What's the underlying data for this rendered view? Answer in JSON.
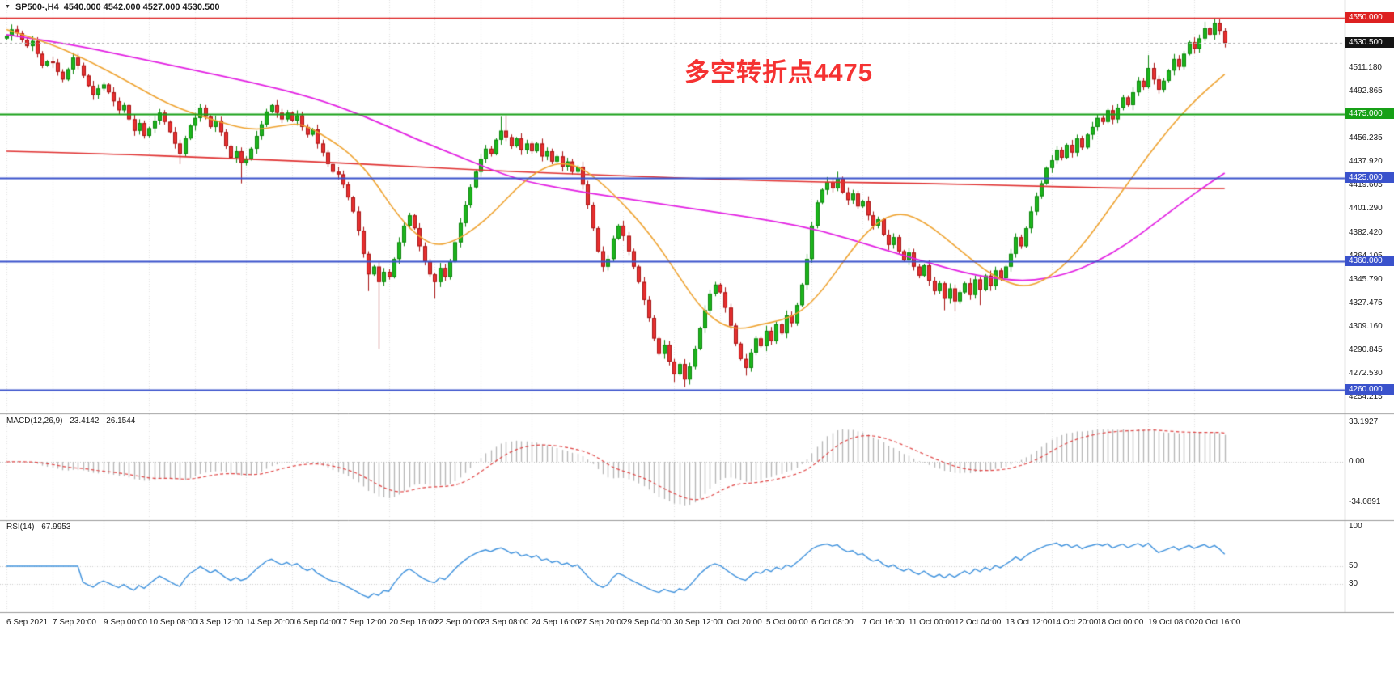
{
  "window": {
    "title_symbol_tf": "SP500-,H4",
    "title_ohlc": "4540.000 4542.000 4527.000 4530.500"
  },
  "chart_data": {
    "type": "candlestick",
    "symbol": "SP500-",
    "timeframe": "H4",
    "current_bar": {
      "open": 4540.0,
      "high": 4542.0,
      "low": 4527.0,
      "close": 4530.5
    },
    "first_open": 4534,
    "closes": [
      4536,
      4541,
      4538,
      4533,
      4528,
      4532,
      4522,
      4513,
      4516,
      4515,
      4508,
      4502,
      4510,
      4519,
      4513,
      4505,
      4497,
      4490,
      4495,
      4498,
      4492,
      4485,
      4478,
      4482,
      4471,
      4462,
      4468,
      4458,
      4464,
      4470,
      4476,
      4469,
      4461,
      4452,
      4444,
      4456,
      4466,
      4472,
      4480,
      4473,
      4465,
      4470,
      4461,
      4450,
      4441,
      4446,
      4437,
      4440,
      4448,
      4458,
      4467,
      4477,
      4482,
      4476,
      4471,
      4476,
      4470,
      4474,
      4465,
      4459,
      4463,
      4452,
      4445,
      4436,
      4430,
      4428,
      4420,
      4410,
      4399,
      4384,
      4366,
      4350,
      4356,
      4344,
      4352,
      4348,
      4362,
      4375,
      4388,
      4396,
      4386,
      4372,
      4360,
      4350,
      4344,
      4355,
      4348,
      4360,
      4375,
      4390,
      4404,
      4418,
      4430,
      4440,
      4448,
      4444,
      4455,
      4462,
      4457,
      4450,
      4456,
      4447,
      4452,
      4446,
      4452,
      4442,
      4446,
      4438,
      4442,
      4434,
      4438,
      4430,
      4434,
      4420,
      4404,
      4386,
      4368,
      4356,
      4362,
      4378,
      4388,
      4380,
      4368,
      4356,
      4344,
      4330,
      4316,
      4300,
      4288,
      4295,
      4282,
      4272,
      4280,
      4268,
      4278,
      4292,
      4308,
      4322,
      4335,
      4342,
      4336,
      4324,
      4310,
      4296,
      4284,
      4277,
      4289,
      4300,
      4294,
      4306,
      4298,
      4311,
      4304,
      4318,
      4312,
      4326,
      4342,
      4362,
      4388,
      4406,
      4416,
      4422,
      4417,
      4425,
      4414,
      4408,
      4413,
      4403,
      4407,
      4396,
      4388,
      4393,
      4381,
      4373,
      4379,
      4368,
      4361,
      4367,
      4356,
      4349,
      4357,
      4345,
      4337,
      4343,
      4331,
      4339,
      4329,
      4336,
      4343,
      4334,
      4346,
      4338,
      4349,
      4341,
      4353,
      4347,
      4356,
      4366,
      4379,
      4372,
      4386,
      4399,
      4411,
      4421,
      4433,
      4439,
      4447,
      4441,
      4451,
      4445,
      4456,
      4449,
      4459,
      4465,
      4472,
      4469,
      4478,
      4471,
      4480,
      4488,
      4482,
      4492,
      4501,
      4496,
      4511,
      4502,
      4494,
      4501,
      4509,
      4518,
      4512,
      4522,
      4531,
      4526,
      4534,
      4542,
      4537,
      4546,
      4540,
      4530.5
    ],
    "wick_overrides": {
      "34": {
        "low": 4436
      },
      "46": {
        "low": 4421
      },
      "71": {
        "low": 4337
      },
      "73": {
        "low": 4292
      },
      "84": {
        "low": 4331
      },
      "97": {
        "high": 4473
      },
      "98": {
        "high": 4474
      },
      "131": {
        "low": 4266
      },
      "133": {
        "low": 4262
      },
      "134": {
        "low": 4264
      },
      "145": {
        "low": 4271
      },
      "163": {
        "high": 4430
      },
      "184": {
        "low": 4322
      },
      "186": {
        "low": 4321
      },
      "191": {
        "low": 4326
      },
      "224": {
        "high": 4521
      },
      "235": {
        "high": 4547
      },
      "237": {
        "high": 4550
      },
      "238": {
        "high": 4549
      },
      "239": {
        "high": 4542,
        "low": 4527
      }
    },
    "x_axis": {
      "labels": [
        "6 Sep 2021",
        "7 Sep 20:00",
        "9 Sep 00:00",
        "10 Sep 08:00",
        "13 Sep 12:00",
        "14 Sep 20:00",
        "16 Sep 04:00",
        "17 Sep 12:00",
        "20 Sep 16:00",
        "22 Sep 00:00",
        "23 Sep 08:00",
        "24 Sep 16:00",
        "27 Sep 20:00",
        "29 Sep 04:00",
        "30 Sep 12:00",
        "1 Oct 20:00",
        "5 Oct 00:00",
        "6 Oct 08:00",
        "7 Oct 16:00",
        "11 Oct 00:00",
        "12 Oct 04:00",
        "13 Oct 12:00",
        "14 Oct 20:00",
        "18 Oct 00:00",
        "19 Oct 08:00",
        "20 Oct 16:00"
      ],
      "indices": [
        0,
        9,
        19,
        28,
        37,
        47,
        56,
        65,
        75,
        84,
        93,
        103,
        112,
        121,
        131,
        140,
        149,
        158,
        168,
        177,
        186,
        196,
        205,
        214,
        224,
        233
      ]
    },
    "y_axis": {
      "ticks": [
        "4511.180",
        "4492.865",
        "4456.235",
        "4437.920",
        "4419.605",
        "4401.290",
        "4382.420",
        "4364.105",
        "4345.790",
        "4327.475",
        "4309.160",
        "4290.845",
        "4272.530",
        "4254.215"
      ],
      "badges": [
        {
          "text": "4550.000",
          "bg": "#dd2020",
          "role": "resistance-line"
        },
        {
          "text": "4530.500",
          "bg": "#141414",
          "role": "current-price"
        },
        {
          "text": "4475.000",
          "bg": "#16a016",
          "role": "pivot-line"
        },
        {
          "text": "4425.000",
          "bg": "#3a52cc",
          "role": "support-line-1"
        },
        {
          "text": "4360.000",
          "bg": "#3a52cc",
          "role": "support-line-2"
        },
        {
          "text": "4260.000",
          "bg": "#3a52cc",
          "role": "support-line-3"
        }
      ]
    },
    "horizontal_lines": [
      {
        "price": 4550,
        "color": "#dd2020",
        "width": 1.4
      },
      {
        "price": 4475,
        "color": "#16a016",
        "width": 1.8
      },
      {
        "price": 4425,
        "color": "#3a52cc",
        "width": 1.8
      },
      {
        "price": 4360,
        "color": "#3a52cc",
        "width": 1.8
      },
      {
        "price": 4260,
        "color": "#3a52cc",
        "width": 1.8
      }
    ],
    "current_price_line": {
      "price": 4530.5,
      "color": "#b0b0b0"
    },
    "moving_averages": [
      {
        "name": "slow-ma-red",
        "color": "#e03131",
        "width": 1.6,
        "anchors": [
          [
            0,
            4446
          ],
          [
            20,
            4444
          ],
          [
            40,
            4441
          ],
          [
            60,
            4438
          ],
          [
            80,
            4434
          ],
          [
            100,
            4430
          ],
          [
            120,
            4427
          ],
          [
            140,
            4424
          ],
          [
            160,
            4422
          ],
          [
            180,
            4421
          ],
          [
            200,
            4419
          ],
          [
            220,
            4417
          ],
          [
            239,
            4417
          ]
        ]
      },
      {
        "name": "medium-ma-magenta",
        "color": "#e320e3",
        "width": 1.8,
        "anchors": [
          [
            0,
            4537
          ],
          [
            12,
            4530
          ],
          [
            24,
            4520
          ],
          [
            36,
            4510
          ],
          [
            48,
            4500
          ],
          [
            60,
            4488
          ],
          [
            70,
            4474
          ],
          [
            80,
            4456
          ],
          [
            90,
            4440
          ],
          [
            100,
            4424
          ],
          [
            110,
            4416
          ],
          [
            120,
            4410
          ],
          [
            130,
            4404
          ],
          [
            140,
            4398
          ],
          [
            150,
            4392
          ],
          [
            160,
            4384
          ],
          [
            170,
            4372
          ],
          [
            180,
            4360
          ],
          [
            190,
            4349
          ],
          [
            200,
            4344
          ],
          [
            208,
            4350
          ],
          [
            214,
            4360
          ],
          [
            220,
            4374
          ],
          [
            226,
            4392
          ],
          [
            232,
            4410
          ],
          [
            236,
            4421
          ],
          [
            239,
            4429
          ]
        ]
      },
      {
        "name": "fast-ma-orange",
        "color": "#efa330",
        "width": 1.6,
        "anchors": [
          [
            0,
            4541
          ],
          [
            8,
            4531
          ],
          [
            16,
            4517
          ],
          [
            24,
            4500
          ],
          [
            32,
            4482
          ],
          [
            40,
            4471
          ],
          [
            48,
            4462
          ],
          [
            54,
            4466
          ],
          [
            58,
            4468
          ],
          [
            64,
            4454
          ],
          [
            68,
            4442
          ],
          [
            72,
            4424
          ],
          [
            76,
            4400
          ],
          [
            80,
            4382
          ],
          [
            84,
            4372
          ],
          [
            88,
            4376
          ],
          [
            92,
            4386
          ],
          [
            96,
            4400
          ],
          [
            100,
            4417
          ],
          [
            104,
            4430
          ],
          [
            108,
            4437
          ],
          [
            112,
            4435
          ],
          [
            116,
            4424
          ],
          [
            120,
            4409
          ],
          [
            124,
            4392
          ],
          [
            128,
            4372
          ],
          [
            132,
            4348
          ],
          [
            136,
            4325
          ],
          [
            140,
            4311
          ],
          [
            144,
            4307
          ],
          [
            148,
            4311
          ],
          [
            152,
            4314
          ],
          [
            156,
            4321
          ],
          [
            160,
            4337
          ],
          [
            164,
            4359
          ],
          [
            168,
            4380
          ],
          [
            172,
            4394
          ],
          [
            176,
            4398
          ],
          [
            180,
            4391
          ],
          [
            184,
            4379
          ],
          [
            188,
            4366
          ],
          [
            192,
            4353
          ],
          [
            196,
            4344
          ],
          [
            200,
            4340
          ],
          [
            204,
            4346
          ],
          [
            208,
            4359
          ],
          [
            212,
            4377
          ],
          [
            216,
            4399
          ],
          [
            220,
            4421
          ],
          [
            224,
            4443
          ],
          [
            228,
            4463
          ],
          [
            232,
            4481
          ],
          [
            236,
            4496
          ],
          [
            239,
            4506
          ]
        ]
      }
    ],
    "candle_colors": {
      "up_fill": "#1db51d",
      "up_border": "#0c860c",
      "down_fill": "#e63030",
      "down_border": "#a81515"
    },
    "indicators": {
      "macd": {
        "label": "MACD(12,26,9)",
        "fast": 12,
        "slow": 26,
        "signal": 9,
        "value_main": "23.4142",
        "value_signal": "26.1544",
        "scale_top": "33.1927",
        "scale_zero": "0.00",
        "scale_bottom": "-34.0891",
        "histogram_color": "#b5b5b5",
        "signal_color": "#e04545"
      },
      "rsi": {
        "label": "RSI(14)",
        "period": 14,
        "value": "67.9953",
        "scale_labels": [
          "100",
          "50",
          "30"
        ],
        "line_color": "#3f92dd"
      }
    },
    "annotation": {
      "text": "多空转折点4475",
      "color": "#f53232"
    }
  }
}
